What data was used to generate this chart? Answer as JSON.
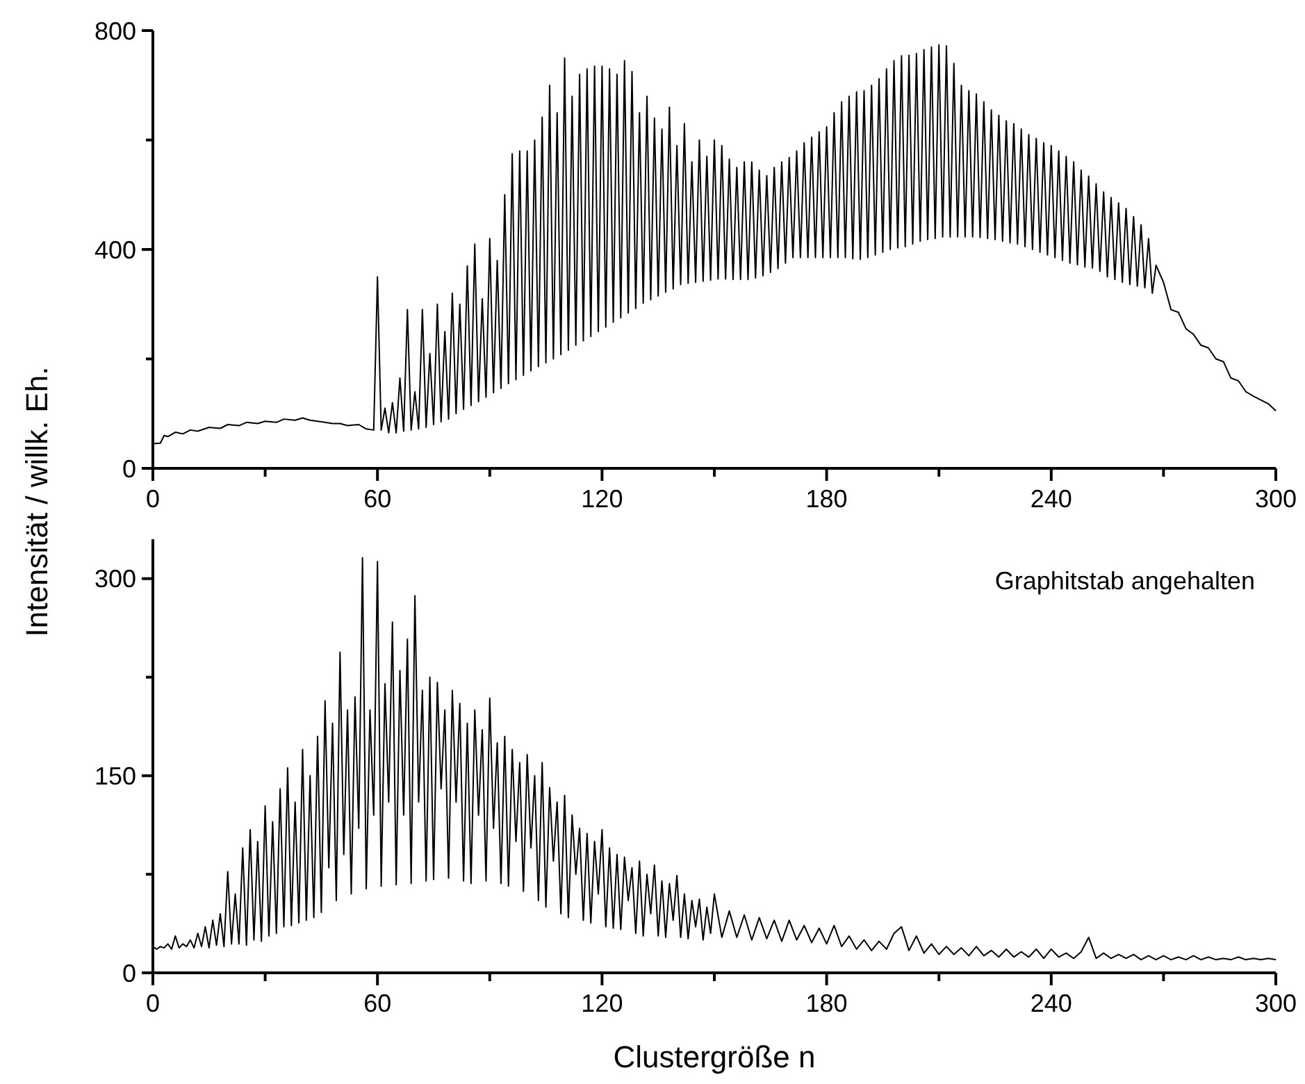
{
  "chart_data": [
    {
      "type": "line",
      "ylabel": "Intensität / willk. Eh.",
      "x": [
        0,
        2,
        3,
        4,
        6,
        8,
        10,
        12,
        15,
        18,
        20,
        23,
        25,
        28,
        30,
        33,
        35,
        38,
        40,
        42,
        45,
        48,
        50,
        52,
        55,
        57,
        59,
        60,
        61,
        62,
        63,
        64,
        65,
        66,
        67,
        68,
        69,
        70,
        71,
        72,
        73,
        74,
        75,
        76,
        77,
        78,
        79,
        80,
        81,
        82,
        83,
        84,
        85,
        86,
        87,
        88,
        89,
        90,
        91,
        92,
        93,
        94,
        95,
        96,
        97,
        98,
        99,
        100,
        101,
        102,
        103,
        104,
        105,
        106,
        107,
        108,
        109,
        110,
        111,
        112,
        113,
        114,
        115,
        116,
        117,
        118,
        119,
        120,
        121,
        122,
        123,
        124,
        125,
        126,
        127,
        128,
        129,
        130,
        131,
        132,
        133,
        134,
        135,
        136,
        137,
        138,
        139,
        140,
        141,
        142,
        143,
        144,
        145,
        146,
        147,
        148,
        149,
        150,
        151,
        152,
        153,
        154,
        155,
        156,
        157,
        158,
        159,
        160,
        161,
        162,
        163,
        164,
        165,
        166,
        167,
        168,
        169,
        170,
        171,
        172,
        173,
        174,
        175,
        176,
        177,
        178,
        179,
        180,
        181,
        182,
        183,
        184,
        185,
        186,
        187,
        188,
        189,
        190,
        191,
        192,
        193,
        194,
        195,
        196,
        197,
        198,
        199,
        200,
        201,
        202,
        203,
        204,
        205,
        206,
        207,
        208,
        209,
        210,
        211,
        212,
        213,
        214,
        215,
        216,
        217,
        218,
        219,
        220,
        221,
        222,
        223,
        224,
        225,
        226,
        227,
        228,
        229,
        230,
        231,
        232,
        233,
        234,
        235,
        236,
        237,
        238,
        239,
        240,
        241,
        242,
        243,
        244,
        245,
        246,
        247,
        248,
        249,
        250,
        251,
        252,
        253,
        254,
        255,
        256,
        257,
        258,
        259,
        260,
        261,
        262,
        263,
        264,
        265,
        266,
        267,
        268,
        270,
        272,
        274,
        276,
        278,
        280,
        282,
        284,
        286,
        288,
        290,
        292,
        294,
        296,
        298,
        300
      ],
      "series": [
        {
          "color": "#000000",
          "values": [
            45,
            46,
            60,
            58,
            66,
            63,
            70,
            68,
            75,
            73,
            80,
            78,
            84,
            82,
            86,
            84,
            90,
            88,
            92,
            88,
            85,
            82,
            82,
            78,
            80,
            72,
            70,
            350,
            70,
            110,
            65,
            120,
            65,
            165,
            68,
            290,
            70,
            140,
            72,
            290,
            75,
            210,
            80,
            300,
            85,
            250,
            90,
            320,
            100,
            300,
            108,
            370,
            115,
            410,
            122,
            310,
            130,
            420,
            138,
            380,
            146,
            500,
            155,
            575,
            162,
            580,
            170,
            580,
            178,
            600,
            186,
            642,
            193,
            700,
            200,
            650,
            208,
            750,
            216,
            680,
            225,
            720,
            233,
            730,
            241,
            735,
            250,
            735,
            258,
            730,
            267,
            720,
            275,
            745,
            284,
            725,
            292,
            650,
            302,
            680,
            308,
            640,
            315,
            620,
            322,
            660,
            328,
            590,
            336,
            630,
            338,
            560,
            340,
            600,
            342,
            570,
            344,
            600,
            346,
            590,
            346,
            565,
            345,
            550,
            345,
            560,
            345,
            560,
            348,
            545,
            352,
            535,
            358,
            550,
            365,
            560,
            375,
            568,
            385,
            580,
            385,
            595,
            385,
            605,
            385,
            615,
            385,
            624,
            385,
            650,
            385,
            670,
            385,
            680,
            383,
            688,
            382,
            690,
            385,
            700,
            390,
            712,
            395,
            730,
            400,
            745,
            403,
            754,
            405,
            755,
            410,
            758,
            415,
            765,
            418,
            770,
            420,
            774,
            423,
            772,
            423,
            740,
            423,
            700,
            423,
            690,
            423,
            684,
            422,
            670,
            420,
            655,
            418,
            645,
            415,
            635,
            412,
            630,
            410,
            620,
            405,
            610,
            400,
            603,
            395,
            595,
            390,
            590,
            385,
            580,
            380,
            570,
            375,
            560,
            372,
            545,
            368,
            534,
            366,
            520,
            360,
            505,
            350,
            495,
            345,
            485,
            340,
            475,
            336,
            460,
            333,
            445,
            330,
            420,
            320,
            371,
            340,
            290,
            285,
            255,
            245,
            225,
            220,
            200,
            195,
            165,
            160,
            140,
            132,
            125,
            118,
            105
          ]
        }
      ],
      "xlim": [
        0,
        300
      ],
      "ylim": [
        0,
        800
      ],
      "xticks": [
        0,
        {
          "value": 30,
          "label": null
        },
        60,
        {
          "value": 90,
          "label": null
        },
        120,
        {
          "value": 150,
          "label": null
        },
        180,
        {
          "value": 210,
          "label": null
        },
        240,
        {
          "value": 270,
          "label": null
        },
        300
      ],
      "yticks": [
        0,
        {
          "value": 200,
          "label": null
        },
        400,
        {
          "value": 600,
          "label": null
        },
        800
      ]
    },
    {
      "type": "line",
      "xlabel": "Clustergröße n",
      "annotations": [
        "Graphitstab angehalten"
      ],
      "x": [
        0,
        1,
        2,
        3,
        4,
        5,
        6,
        7,
        8,
        9,
        10,
        11,
        12,
        13,
        14,
        15,
        16,
        17,
        18,
        19,
        20,
        21,
        22,
        23,
        24,
        25,
        26,
        27,
        28,
        29,
        30,
        31,
        32,
        33,
        34,
        35,
        36,
        37,
        38,
        39,
        40,
        41,
        42,
        43,
        44,
        45,
        46,
        47,
        48,
        49,
        50,
        51,
        52,
        53,
        54,
        55,
        56,
        57,
        58,
        59,
        60,
        61,
        62,
        63,
        64,
        65,
        66,
        67,
        68,
        69,
        70,
        71,
        72,
        73,
        74,
        75,
        76,
        77,
        78,
        79,
        80,
        81,
        82,
        83,
        84,
        85,
        86,
        87,
        88,
        89,
        90,
        91,
        92,
        93,
        94,
        95,
        96,
        97,
        98,
        99,
        100,
        101,
        102,
        103,
        104,
        105,
        106,
        107,
        108,
        109,
        110,
        111,
        112,
        113,
        114,
        115,
        116,
        117,
        118,
        119,
        120,
        121,
        122,
        123,
        124,
        125,
        126,
        127,
        128,
        129,
        130,
        131,
        132,
        133,
        134,
        135,
        136,
        137,
        138,
        139,
        140,
        141,
        142,
        143,
        144,
        145,
        146,
        147,
        148,
        149,
        150,
        152,
        154,
        156,
        158,
        160,
        162,
        164,
        166,
        168,
        170,
        172,
        174,
        176,
        178,
        180,
        182,
        184,
        186,
        188,
        190,
        192,
        194,
        196,
        198,
        200,
        202,
        204,
        206,
        208,
        210,
        212,
        214,
        216,
        218,
        220,
        222,
        224,
        226,
        228,
        230,
        232,
        234,
        236,
        238,
        240,
        242,
        244,
        246,
        248,
        250,
        252,
        254,
        256,
        258,
        260,
        262,
        264,
        266,
        268,
        270,
        272,
        274,
        276,
        278,
        280,
        282,
        284,
        286,
        288,
        290,
        292,
        294,
        296,
        298,
        300
      ],
      "series": [
        {
          "color": "#000000",
          "values": [
            20,
            18,
            20,
            19,
            22,
            18,
            28,
            19,
            22,
            20,
            25,
            19,
            30,
            20,
            35,
            19,
            40,
            21,
            45,
            20,
            77,
            22,
            60,
            22,
            95,
            21,
            109,
            25,
            100,
            24,
            127,
            28,
            115,
            30,
            140,
            35,
            156,
            36,
            130,
            38,
            170,
            40,
            150,
            42,
            180,
            46,
            207,
            80,
            190,
            55,
            244,
            90,
            200,
            60,
            210,
            110,
            316,
            64,
            200,
            120,
            313,
            66,
            220,
            130,
            267,
            67,
            230,
            120,
            254,
            68,
            287,
            130,
            215,
            70,
            225,
            71,
            221,
            140,
            200,
            72,
            215,
            130,
            205,
            70,
            190,
            68,
            200,
            120,
            185,
            70,
            209,
            110,
            175,
            68,
            180,
            66,
            170,
            100,
            160,
            62,
            166,
            95,
            150,
            55,
            160,
            50,
            141,
            85,
            130,
            45,
            135,
            42,
            120,
            75,
            110,
            40,
            106,
            38,
            100,
            60,
            109,
            35,
            95,
            34,
            90,
            33,
            88,
            55,
            80,
            30,
            85,
            28,
            75,
            45,
            82,
            28,
            70,
            27,
            68,
            40,
            74,
            27,
            60,
            26,
            55,
            35,
            56,
            25,
            50,
            30,
            60,
            27,
            47,
            27,
            44,
            25,
            42,
            26,
            40,
            24,
            40,
            25,
            36,
            23,
            34,
            22,
            36,
            20,
            28,
            18,
            25,
            17,
            24,
            18,
            30,
            35,
            17,
            28,
            15,
            22,
            14,
            20,
            14,
            19,
            13,
            20,
            13,
            17,
            12,
            18,
            12,
            16,
            12,
            18,
            11,
            18,
            12,
            15,
            11,
            16,
            27,
            11,
            15,
            11,
            14,
            11,
            14,
            10,
            13,
            10,
            13,
            10,
            12,
            10,
            13,
            10,
            12,
            10,
            11,
            10,
            12,
            10,
            11,
            10,
            11,
            10
          ]
        }
      ],
      "xlim": [
        0,
        300
      ],
      "ylim": [
        0,
        330
      ],
      "xticks": [
        0,
        {
          "value": 30,
          "label": null
        },
        60,
        {
          "value": 90,
          "label": null
        },
        120,
        {
          "value": 150,
          "label": null
        },
        180,
        {
          "value": 210,
          "label": null
        },
        240,
        {
          "value": 270,
          "label": null
        },
        300
      ],
      "yticks": [
        0,
        {
          "value": 75,
          "label": null
        },
        150,
        {
          "value": 225,
          "label": null
        },
        300
      ]
    }
  ]
}
